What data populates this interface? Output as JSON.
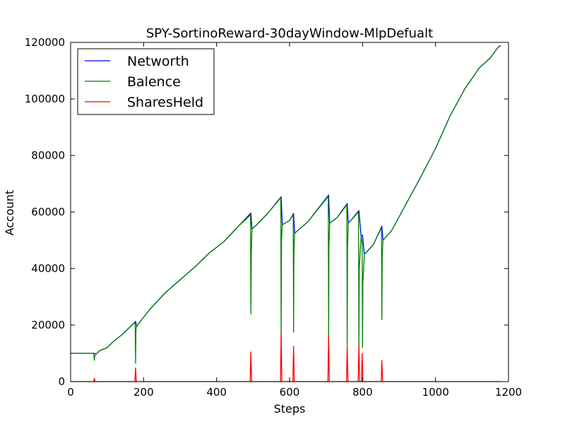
{
  "chart_data": {
    "type": "line",
    "title": "SPY-SortinoReward-30dayWindow-MlpDefualt",
    "xlabel": "Steps",
    "ylabel": "Account",
    "xlim": [
      0,
      1200
    ],
    "ylim": [
      0,
      120000
    ],
    "xticks": [
      0,
      200,
      400,
      600,
      800,
      1000,
      1200
    ],
    "yticks": [
      0,
      20000,
      40000,
      60000,
      80000,
      100000,
      120000
    ],
    "xtick_labels": [
      "0",
      "200",
      "400",
      "600",
      "800",
      "1000",
      "1200"
    ],
    "ytick_labels": [
      "0",
      "20000",
      "40000",
      "60000",
      "80000",
      "100000",
      "120000"
    ],
    "grid": false,
    "legend_position": "top-left",
    "series": [
      {
        "name": "Networth",
        "color": "#0000ff",
        "x": [
          0,
          40,
          65,
          70,
          80,
          100,
          120,
          140,
          160,
          178,
          181,
          195,
          220,
          260,
          300,
          340,
          380,
          420,
          460,
          494,
          497,
          510,
          540,
          577,
          580,
          600,
          611,
          614,
          650,
          707,
          710,
          730,
          758,
          761,
          790,
          796,
          800,
          805,
          830,
          853,
          856,
          880,
          920,
          960,
          1000,
          1040,
          1080,
          1120,
          1150,
          1170,
          1178
        ],
        "y": [
          10000,
          10000,
          10000,
          9800,
          11000,
          12000,
          14500,
          16500,
          19000,
          21300,
          19500,
          22000,
          26000,
          31500,
          36000,
          40500,
          45500,
          49500,
          55000,
          59600,
          54000,
          55500,
          59500,
          65400,
          55500,
          57000,
          59500,
          52500,
          56500,
          66000,
          56000,
          58000,
          63000,
          56000,
          60500,
          51500,
          51800,
          45000,
          48500,
          55000,
          50000,
          53500,
          63000,
          72500,
          82500,
          94000,
          103500,
          111000,
          114500,
          118000,
          119000
        ]
      },
      {
        "name": "Balence",
        "color": "#008000",
        "x": [
          0,
          40,
          63,
          65,
          66,
          70,
          80,
          100,
          120,
          140,
          160,
          177,
          178,
          179,
          181,
          195,
          220,
          260,
          300,
          340,
          380,
          420,
          460,
          493,
          494,
          495,
          497,
          510,
          540,
          576,
          577,
          578,
          580,
          600,
          610,
          611,
          612,
          614,
          650,
          706,
          707,
          708,
          710,
          730,
          757,
          758,
          759,
          761,
          789,
          790,
          791,
          796,
          799,
          800,
          801,
          805,
          830,
          852,
          853,
          854,
          856,
          880,
          920,
          960,
          1000,
          1040,
          1080,
          1120,
          1150,
          1170,
          1178
        ],
        "y": [
          10000,
          10000,
          10000,
          7500,
          9000,
          9800,
          11000,
          12000,
          14500,
          16500,
          19000,
          21000,
          6500,
          18500,
          19500,
          22000,
          26000,
          31500,
          36000,
          40500,
          45500,
          49500,
          55000,
          59000,
          24000,
          45000,
          54000,
          55500,
          59500,
          65000,
          14000,
          50000,
          55500,
          57000,
          59000,
          17500,
          46000,
          52500,
          56500,
          65500,
          14000,
          48000,
          56000,
          58000,
          62500,
          12500,
          48000,
          56000,
          60000,
          12000,
          40000,
          51500,
          49000,
          12000,
          35000,
          45000,
          48500,
          54500,
          22000,
          44000,
          50000,
          53500,
          63000,
          72500,
          82500,
          94000,
          103500,
          111000,
          114500,
          118000,
          119000
        ]
      },
      {
        "name": "SharesHeld",
        "color": "#ff0000",
        "x": [
          0,
          63,
          65,
          67,
          176,
          178,
          180,
          492,
          494,
          496,
          575,
          577,
          579,
          609,
          611,
          613,
          705,
          707,
          709,
          756,
          758,
          760,
          788,
          790,
          792,
          797,
          799,
          801,
          851,
          853,
          855,
          1178
        ],
        "y": [
          0,
          0,
          1200,
          0,
          0,
          4800,
          0,
          0,
          10500,
          0,
          0,
          17000,
          0,
          0,
          12500,
          0,
          0,
          16000,
          0,
          0,
          12500,
          0,
          0,
          13000,
          0,
          0,
          10000,
          0,
          0,
          7500,
          0,
          0
        ]
      }
    ]
  }
}
